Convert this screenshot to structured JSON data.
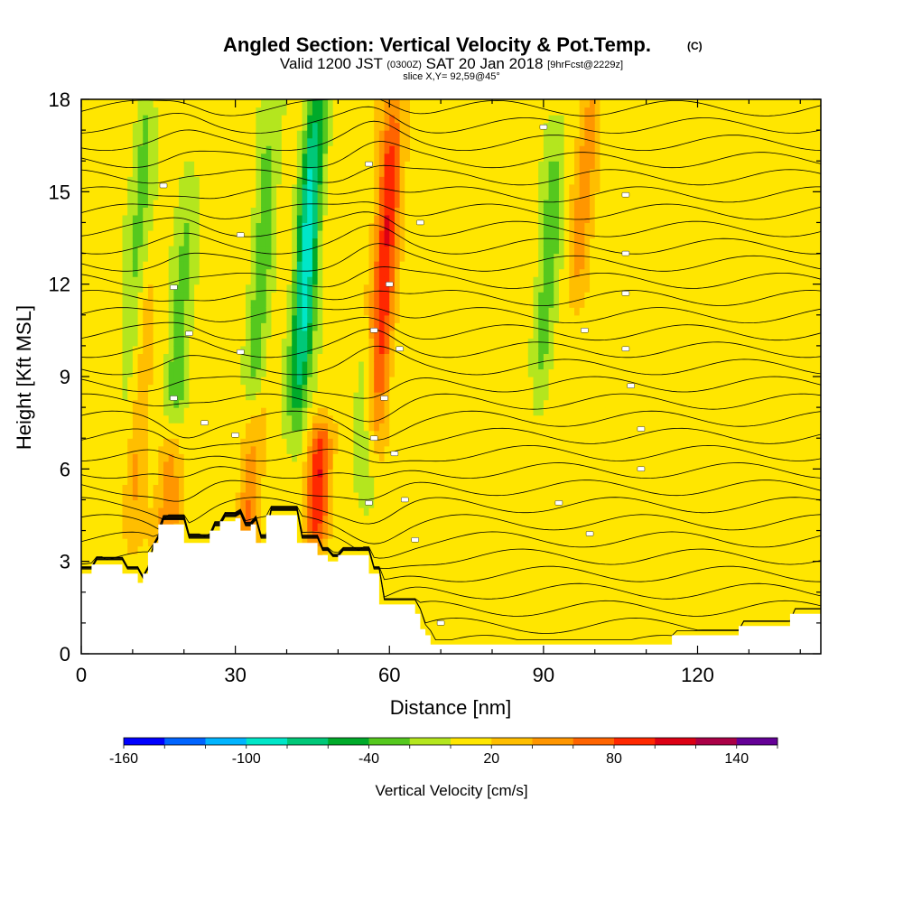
{
  "chart_data": {
    "type": "heatmap",
    "title": "Angled Section: Vertical Velocity & Pot.Temp.",
    "title_suffix": "(C)",
    "subtitle": {
      "valid": "Valid 1200 JST",
      "utc": "(0300Z)",
      "date": "SAT 20 Jan 2018",
      "forecast": "[9hrFcst@2229z]"
    },
    "slice_note": "slice X,Y= 92,59@45°",
    "xlabel": "Distance [nm]",
    "ylabel": "Height [Kft MSL]",
    "xlim": [
      0,
      144
    ],
    "ylim": [
      0,
      18
    ],
    "x_ticks": [
      0,
      30,
      60,
      90,
      120
    ],
    "x_tick_labels": [
      "0",
      "30",
      "60",
      "90",
      "120"
    ],
    "y_ticks": [
      0,
      3,
      6,
      9,
      12,
      15,
      18
    ],
    "y_tick_labels": [
      "0",
      "3",
      "6",
      "9",
      "12",
      "15",
      "18"
    ],
    "fill_field": {
      "name": "Vertical Velocity",
      "units": "cm/s",
      "background_value": 10,
      "features": [
        {
          "type": "updraft",
          "x": 11,
          "z": [
            4,
            12
          ],
          "peak": 40
        },
        {
          "type": "downdraft",
          "x": 11,
          "z": [
            7,
            18
          ],
          "peak": -40
        },
        {
          "type": "downdraft",
          "x": 19,
          "z": [
            6,
            15
          ],
          "peak": -40
        },
        {
          "type": "updraft",
          "x": 17,
          "z": [
            3.5,
            7
          ],
          "peak": 60
        },
        {
          "type": "downdraft",
          "x": 35,
          "z": [
            7,
            18
          ],
          "peak": -40
        },
        {
          "type": "updraft",
          "x": 33,
          "z": [
            3.5,
            8
          ],
          "peak": 50
        },
        {
          "type": "downdraft",
          "x": 44,
          "z": [
            8,
            18
          ],
          "peak": -100
        },
        {
          "type": "updraft",
          "x": 46,
          "z": [
            4,
            7
          ],
          "peak": 90
        },
        {
          "type": "downdraft",
          "x": 56,
          "z": [
            5,
            10
          ],
          "peak": -40
        },
        {
          "type": "updraft",
          "x": 59,
          "z": [
            7,
            18
          ],
          "peak": 90
        },
        {
          "type": "downdraft",
          "x": 91,
          "z": [
            9,
            17
          ],
          "peak": -40
        },
        {
          "type": "updraft",
          "x": 98,
          "z": [
            12,
            18
          ],
          "peak": 40
        }
      ]
    },
    "contour_field": {
      "name": "Pot.Temp.",
      "units": "C",
      "levels_base": 0,
      "levels_step": 1
    },
    "terrain": [
      [
        0,
        2.6
      ],
      [
        2,
        2.9
      ],
      [
        7,
        2.9
      ],
      [
        8,
        2.6
      ],
      [
        10,
        2.6
      ],
      [
        11,
        2.3
      ],
      [
        12,
        2.6
      ],
      [
        13,
        3.3
      ],
      [
        14,
        3.6
      ],
      [
        15,
        4.2
      ],
      [
        18,
        4.2
      ],
      [
        20,
        3.6
      ],
      [
        24,
        3.6
      ],
      [
        25,
        4.0
      ],
      [
        27,
        4.3
      ],
      [
        30,
        4.4
      ],
      [
        31,
        4.0
      ],
      [
        33,
        4.2
      ],
      [
        34,
        3.6
      ],
      [
        36,
        4.5
      ],
      [
        40,
        4.5
      ],
      [
        42,
        3.6
      ],
      [
        45,
        3.6
      ],
      [
        46,
        3.2
      ],
      [
        48,
        3.0
      ],
      [
        50,
        3.2
      ],
      [
        54,
        3.2
      ],
      [
        56,
        2.6
      ],
      [
        58,
        1.6
      ],
      [
        63,
        1.6
      ],
      [
        65,
        1.3
      ],
      [
        66,
        0.8
      ],
      [
        67,
        0.6
      ],
      [
        68,
        0.3
      ],
      [
        90,
        0.3
      ],
      [
        114,
        0.3
      ],
      [
        115,
        0.6
      ],
      [
        128,
        0.9
      ],
      [
        137,
        0.9
      ],
      [
        138,
        1.3
      ],
      [
        144,
        1.3
      ]
    ],
    "colorbar": {
      "label": "Vertical Velocity [cm/s]",
      "ticks": [
        -160,
        -100,
        -40,
        20,
        80,
        140
      ],
      "tick_labels": [
        "-160",
        "-100",
        "-40",
        "20",
        "80",
        "140"
      ],
      "min": -160,
      "max": 160,
      "step": 20,
      "colors": [
        "#0000ff",
        "#0064ff",
        "#00b4ff",
        "#00e6c8",
        "#00c878",
        "#00aa2a",
        "#55c81e",
        "#b4e61e",
        "#ffe600",
        "#ffbe00",
        "#ff9600",
        "#ff6400",
        "#ff2800",
        "#dc0014",
        "#aa0046",
        "#640096"
      ]
    }
  }
}
